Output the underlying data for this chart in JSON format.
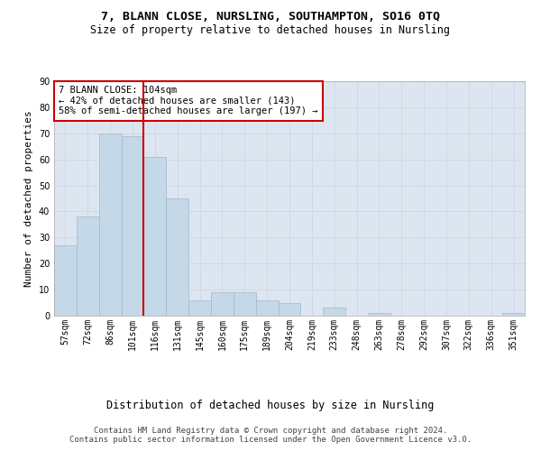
{
  "title1": "7, BLANN CLOSE, NURSLING, SOUTHAMPTON, SO16 0TQ",
  "title2": "Size of property relative to detached houses in Nursling",
  "xlabel": "Distribution of detached houses by size in Nursling",
  "ylabel": "Number of detached properties",
  "categories": [
    "57sqm",
    "72sqm",
    "86sqm",
    "101sqm",
    "116sqm",
    "131sqm",
    "145sqm",
    "160sqm",
    "175sqm",
    "189sqm",
    "204sqm",
    "219sqm",
    "233sqm",
    "248sqm",
    "263sqm",
    "278sqm",
    "292sqm",
    "307sqm",
    "322sqm",
    "336sqm",
    "351sqm"
  ],
  "values": [
    27,
    38,
    70,
    69,
    61,
    45,
    6,
    9,
    9,
    6,
    5,
    0,
    3,
    0,
    1,
    0,
    0,
    0,
    0,
    0,
    1
  ],
  "bar_color": "#c5d8e8",
  "bar_edge_color": "#a0b8cc",
  "vline_x_index": 3,
  "vline_color": "#cc0000",
  "annotation_line1": "7 BLANN CLOSE: 104sqm",
  "annotation_line2": "← 42% of detached houses are smaller (143)",
  "annotation_line3": "58% of semi-detached houses are larger (197) →",
  "annotation_box_color": "#ffffff",
  "annotation_box_edge_color": "#cc0000",
  "ylim": [
    0,
    90
  ],
  "yticks": [
    0,
    10,
    20,
    30,
    40,
    50,
    60,
    70,
    80,
    90
  ],
  "grid_color": "#d0d8e8",
  "background_color": "#dde6f0",
  "footer_text": "Contains HM Land Registry data © Crown copyright and database right 2024.\nContains public sector information licensed under the Open Government Licence v3.0.",
  "title_fontsize": 9.5,
  "subtitle_fontsize": 8.5,
  "tick_fontsize": 7,
  "ylabel_fontsize": 8,
  "xlabel_fontsize": 8.5,
  "annotation_fontsize": 7.5,
  "footer_fontsize": 6.5
}
